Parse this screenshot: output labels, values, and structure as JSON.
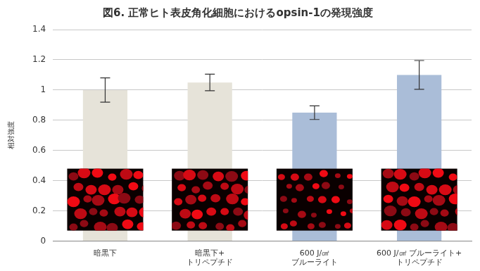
{
  "chart_data": {
    "type": "bar",
    "title": "図6. 正常ヒト表皮角化細胞におけるopsin-1の発現強度",
    "y_label": "相対強度",
    "categories": [
      "暗黒下",
      "暗黒下+\nトリペプチド",
      "600 J/㎠\nブルーライト",
      "600 J/㎠ ブルーライト+\nトリペプチド"
    ],
    "values": [
      1.0,
      1.05,
      0.85,
      1.1
    ],
    "errors": [
      0.08,
      0.055,
      0.045,
      0.095
    ],
    "colors": [
      "#e6e3d9",
      "#e6e3d9",
      "#aabdd8",
      "#aabdd8"
    ],
    "ylim": [
      0,
      1.4
    ],
    "yticks": [
      0,
      0.2,
      0.4,
      0.6,
      0.8,
      1,
      1.2,
      1.4
    ],
    "grid": true
  }
}
